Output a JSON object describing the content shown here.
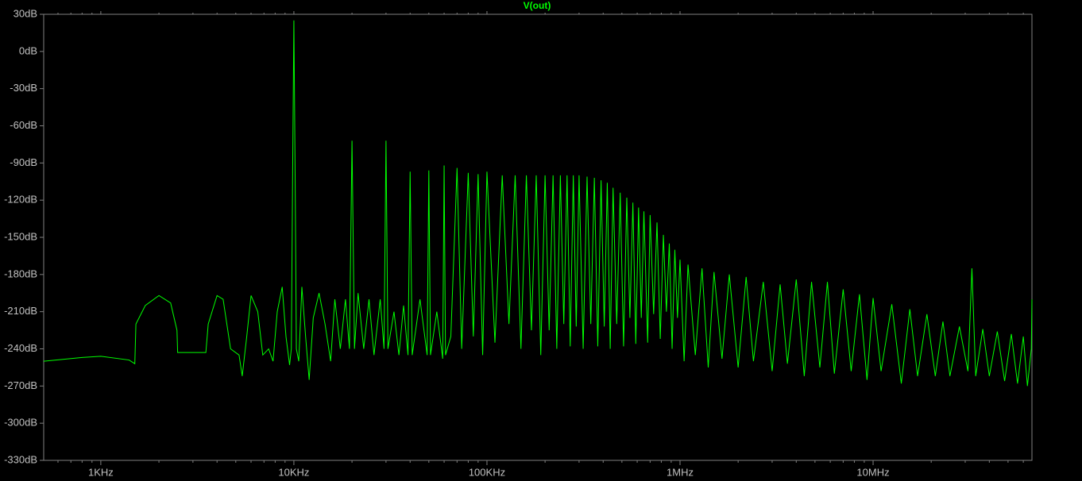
{
  "chart_data": {
    "type": "line",
    "title": "V(out)",
    "log_x": true,
    "color": "#00ff00",
    "xlim": [
      506,
      66500000
    ],
    "ylim": [
      -330,
      30
    ],
    "xticks": [
      {
        "value": 1000,
        "label": "1KHz"
      },
      {
        "value": 10000,
        "label": "10KHz"
      },
      {
        "value": 100000,
        "label": "100KHz"
      },
      {
        "value": 1000000,
        "label": "1MHz"
      },
      {
        "value": 10000000,
        "label": "10MHz"
      }
    ],
    "xminorticks": [
      600,
      700,
      800,
      900,
      2000,
      3000,
      4000,
      5000,
      6000,
      7000,
      8000,
      9000,
      20000,
      30000,
      40000,
      50000,
      60000,
      70000,
      80000,
      90000,
      200000,
      300000,
      400000,
      500000,
      600000,
      700000,
      800000,
      900000,
      2000000,
      3000000,
      4000000,
      5000000,
      6000000,
      7000000,
      8000000,
      9000000,
      20000000,
      30000000,
      40000000,
      50000000,
      60000000
    ],
    "yticks": [
      {
        "value": 30,
        "label": "30dB"
      },
      {
        "value": 0,
        "label": "0dB"
      },
      {
        "value": -30,
        "label": "-30dB"
      },
      {
        "value": -60,
        "label": "-60dB"
      },
      {
        "value": -90,
        "label": "-90dB"
      },
      {
        "value": -120,
        "label": "-120dB"
      },
      {
        "value": -150,
        "label": "-150dB"
      },
      {
        "value": -180,
        "label": "-180dB"
      },
      {
        "value": -210,
        "label": "-210dB"
      },
      {
        "value": -240,
        "label": "-240dB"
      },
      {
        "value": -270,
        "label": "-270dB"
      },
      {
        "value": -300,
        "label": "-300dB"
      },
      {
        "value": -330,
        "label": "-330dB"
      }
    ],
    "x": [
      506,
      800,
      1000,
      1400,
      1500,
      1520,
      1700,
      2000,
      2300,
      2480,
      2500,
      3500,
      3600,
      4000,
      4300,
      4700,
      5200,
      5400,
      5700,
      6000,
      6500,
      6900,
      7400,
      7800,
      8200,
      8700,
      9100,
      9500,
      9700,
      9850,
      10000,
      10150,
      10300,
      10600,
      11000,
      11500,
      12000,
      12600,
      13500,
      14500,
      15500,
      16300,
      17400,
      18500,
      19400,
      20000,
      20600,
      21500,
      23000,
      24500,
      26000,
      28000,
      29300,
      30000,
      30700,
      33000,
      35000,
      37000,
      39000,
      40000,
      41000,
      45000,
      49000,
      50000,
      51000,
      55000,
      59000,
      60000,
      61000,
      65000,
      70000,
      74000,
      80000,
      85000,
      90000,
      95000,
      100000,
      110000,
      120000,
      130000,
      140000,
      150000,
      160000,
      170000,
      180000,
      190000,
      200000,
      210000,
      220000,
      230000,
      240000,
      250000,
      260000,
      270000,
      280000,
      290000,
      300000,
      315000,
      330000,
      345000,
      360000,
      375000,
      390000,
      405000,
      420000,
      435000,
      450000,
      470000,
      490000,
      510000,
      530000,
      550000,
      570000,
      590000,
      610000,
      630000,
      650000,
      680000,
      700000,
      730000,
      760000,
      790000,
      820000,
      850000,
      880000,
      910000,
      940000,
      970000,
      1000000,
      1050000,
      1100000,
      1200000,
      1300000,
      1400000,
      1500000,
      1650000,
      1800000,
      2000000,
      2200000,
      2400000,
      2700000,
      3000000,
      3300000,
      3600000,
      4000000,
      4400000,
      4800000,
      5300000,
      5800000,
      6300000,
      7000000,
      7700000,
      8500000,
      9300000,
      10000000,
      11000000,
      12500000,
      14000000,
      15500000,
      17000000,
      19000000,
      21000000,
      23000000,
      25000000,
      28000000,
      31000000,
      32500000,
      34000000,
      37000000,
      40000000,
      44000000,
      48000000,
      52000000,
      56000000,
      60000000,
      63000000,
      66000000,
      66500000
    ],
    "values": [
      -250,
      -247,
      -246,
      -249,
      -252,
      -220,
      -205,
      -197,
      -203,
      -225,
      -243,
      -243,
      -220,
      -197,
      -200,
      -240,
      -245,
      -262,
      -230,
      -197,
      -210,
      -245,
      -240,
      -250,
      -210,
      -190,
      -230,
      -253,
      -240,
      -100,
      25,
      -100,
      -240,
      -250,
      -190,
      -230,
      -265,
      -215,
      -195,
      -220,
      -250,
      -200,
      -240,
      -200,
      -240,
      -72,
      -240,
      -195,
      -240,
      -200,
      -245,
      -200,
      -240,
      -72,
      -240,
      -210,
      -245,
      -205,
      -245,
      -97,
      -245,
      -200,
      -245,
      -96,
      -245,
      -210,
      -248,
      -92,
      -245,
      -230,
      -94,
      -240,
      -98,
      -230,
      -99,
      -245,
      -97,
      -235,
      -100,
      -220,
      -100,
      -240,
      -100,
      -225,
      -100,
      -245,
      -100,
      -225,
      -100,
      -240,
      -100,
      -220,
      -100,
      -238,
      -100,
      -222,
      -100,
      -240,
      -101,
      -220,
      -102,
      -238,
      -104,
      -222,
      -106,
      -240,
      -110,
      -220,
      -114,
      -238,
      -118,
      -215,
      -122,
      -236,
      -126,
      -215,
      -129,
      -235,
      -132,
      -212,
      -138,
      -232,
      -148,
      -210,
      -155,
      -240,
      -160,
      -215,
      -168,
      -250,
      -172,
      -245,
      -175,
      -255,
      -178,
      -248,
      -180,
      -255,
      -182,
      -250,
      -186,
      -258,
      -188,
      -252,
      -184,
      -262,
      -186,
      -255,
      -186,
      -260,
      -192,
      -258,
      -196,
      -265,
      -199,
      -258,
      -204,
      -268,
      -208,
      -262,
      -212,
      -262,
      -218,
      -262,
      -222,
      -258,
      -175,
      -262,
      -224,
      -262,
      -226,
      -266,
      -228,
      -268,
      -230,
      -270,
      -240,
      -200
    ]
  }
}
